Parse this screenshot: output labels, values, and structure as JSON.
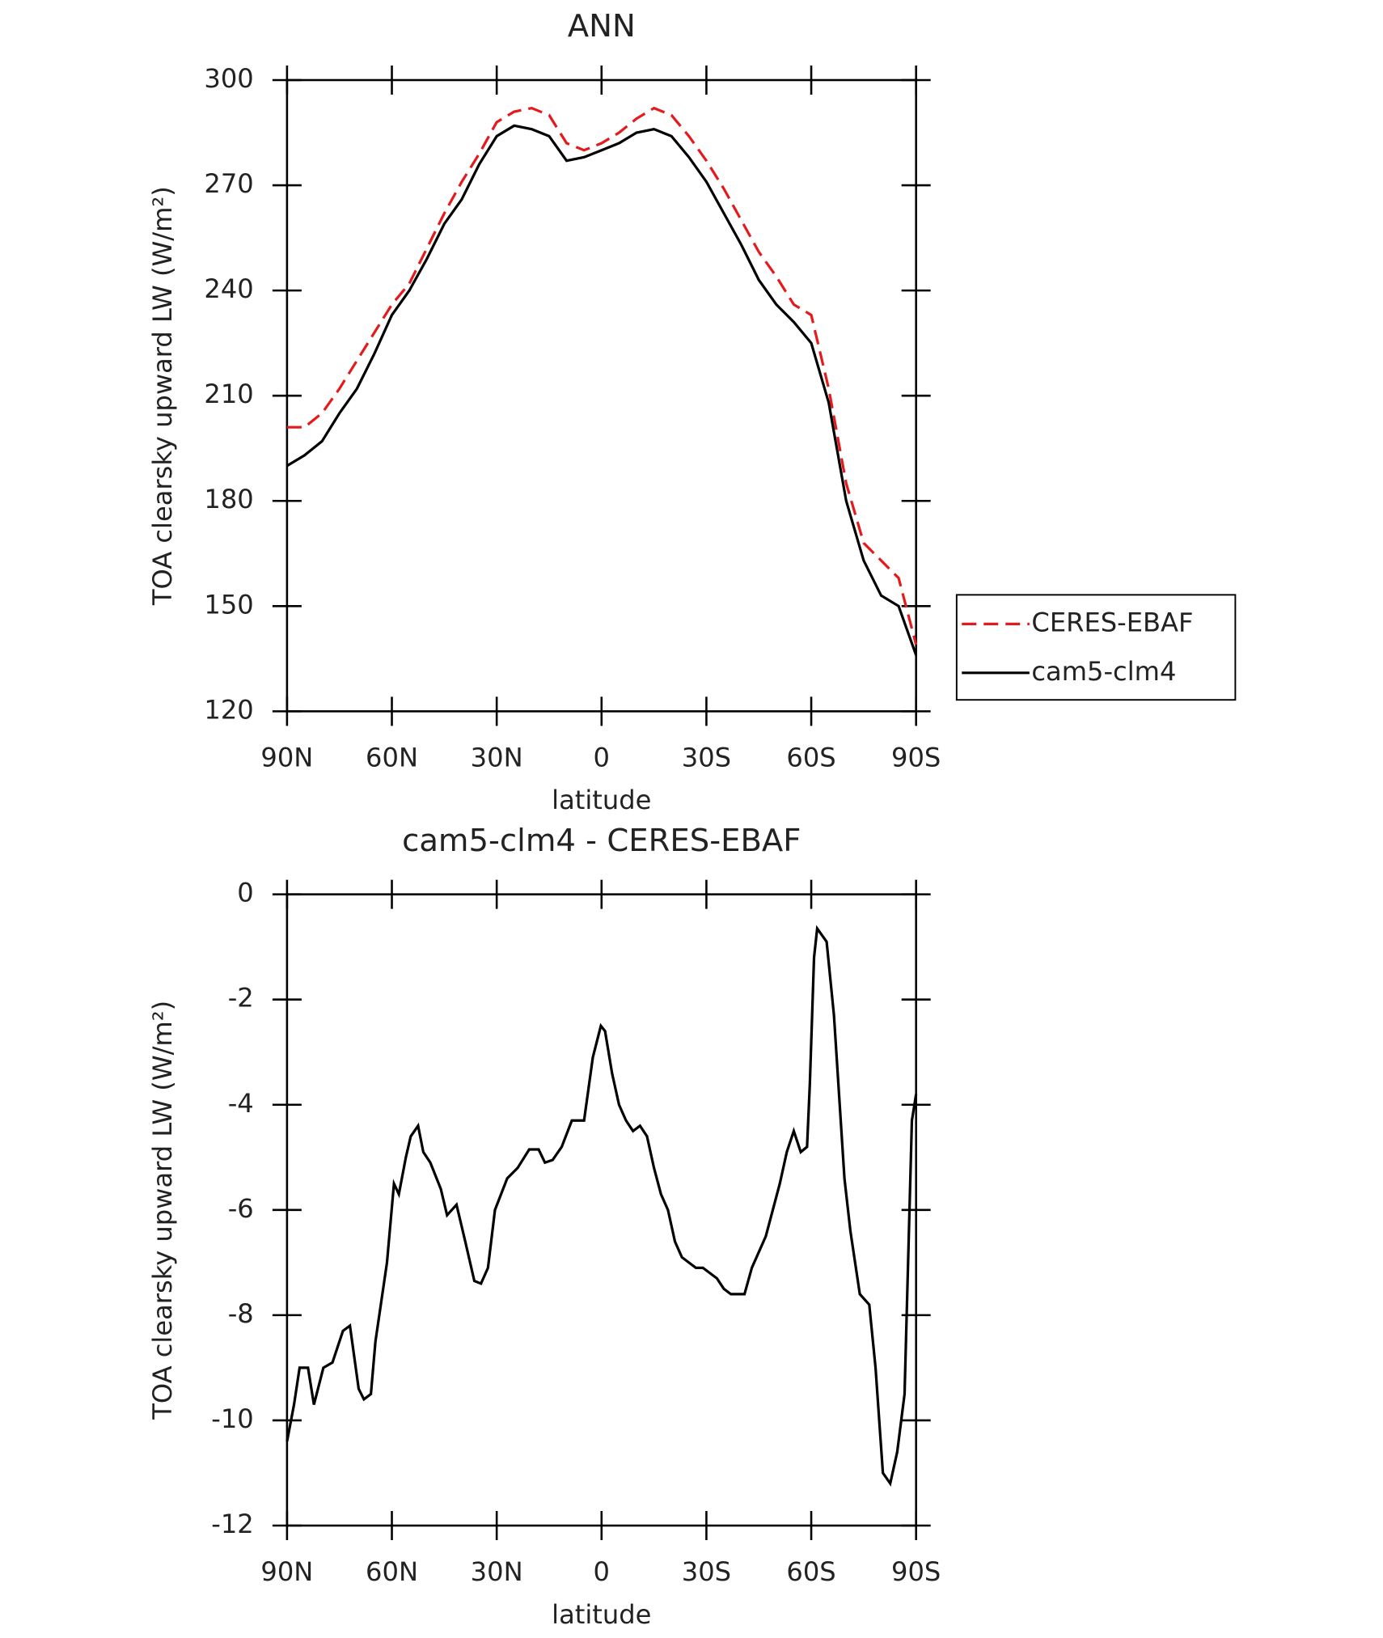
{
  "chart_data": [
    {
      "type": "line",
      "title": "ANN",
      "xlabel": "latitude",
      "ylabel": "TOA clearsky upward LW (W/m²)",
      "x": [
        90,
        85,
        80,
        75,
        70,
        65,
        60,
        55,
        50,
        45,
        40,
        35,
        30,
        25,
        20,
        15,
        10,
        5,
        0,
        -5,
        -10,
        -15,
        -20,
        -25,
        -30,
        -35,
        -40,
        -45,
        -50,
        -55,
        -60,
        -65,
        -70,
        -75,
        -80,
        -85,
        -90
      ],
      "series": [
        {
          "name": "CERES-EBAF",
          "color": "#e41a1c",
          "dash": true,
          "values": [
            201,
            201,
            205,
            212,
            220,
            228,
            236,
            242,
            252,
            262,
            271,
            279,
            288,
            291,
            292,
            290,
            282,
            280,
            282,
            285,
            289,
            292,
            290,
            284,
            277,
            269,
            260,
            251,
            244,
            236,
            233,
            212,
            185,
            168,
            163,
            158,
            139
          ]
        },
        {
          "name": "cam5-clm4",
          "color": "#000000",
          "dash": false,
          "values": [
            190,
            193,
            197,
            205,
            212,
            222,
            233,
            240,
            249,
            259,
            266,
            276,
            284,
            287,
            286,
            284,
            277,
            278,
            280,
            282,
            285,
            286,
            284,
            278,
            271,
            262,
            253,
            243,
            236,
            231,
            225,
            208,
            180,
            163,
            153,
            150,
            136
          ]
        }
      ],
      "xlim": [
        90,
        -90
      ],
      "xticks": [
        {
          "value": 90,
          "label": "90N"
        },
        {
          "value": 60,
          "label": "60N"
        },
        {
          "value": 30,
          "label": "30N"
        },
        0,
        {
          "value": -30,
          "label": "30S"
        },
        {
          "value": -60,
          "label": "60S"
        },
        {
          "value": -90,
          "label": "90S"
        }
      ],
      "ylim": [
        120,
        300
      ],
      "yticks": [
        120,
        150,
        180,
        210,
        240,
        270,
        300
      ],
      "legend": "right"
    },
    {
      "type": "line",
      "title": "cam5-clm4 - CERES-EBAF",
      "xlabel": "latitude",
      "ylabel": "TOA clearsky upward LW (W/m²)",
      "x": [
        90,
        88,
        86.4,
        84,
        82.3,
        79.6,
        77,
        74,
        72,
        69.5,
        68,
        66,
        64.7,
        61.4,
        59.4,
        58,
        56,
        54.6,
        52.5,
        51,
        49,
        46,
        44.2,
        41.5,
        39,
        36.4,
        34.5,
        32.5,
        30.5,
        27,
        24,
        20.7,
        18,
        16.2,
        14,
        11.4,
        8.5,
        5,
        2.5,
        0.2,
        -1,
        -3,
        -5,
        -7,
        -9,
        -11,
        -13,
        -15,
        -17,
        -19,
        -21,
        -23,
        -25,
        -27,
        -29,
        -31,
        -33,
        -35,
        -37,
        -39,
        -40.9,
        -43,
        -45,
        -47,
        -49,
        -51,
        -53,
        -55,
        -57,
        -58.8,
        -59.6,
        -60.8,
        -61.7,
        -64.4,
        -66.5,
        -69.5,
        -71.2,
        -73.9,
        -76.6,
        -78.4,
        -80.5,
        -82.6,
        -84.6,
        -86.7,
        -88.8,
        -90
      ],
      "series": [
        {
          "name": "cam5-clm4 - CERES-EBAF",
          "color": "#000000",
          "dash": false,
          "values": [
            -10.4,
            -9.7,
            -9.0,
            -9.0,
            -9.7,
            -9.0,
            -8.9,
            -8.3,
            -8.2,
            -9.4,
            -9.6,
            -9.5,
            -8.5,
            -7.0,
            -5.5,
            -5.7,
            -5.0,
            -4.6,
            -4.4,
            -4.9,
            -5.1,
            -5.6,
            -6.1,
            -5.9,
            -6.6,
            -7.35,
            -7.4,
            -7.1,
            -6.0,
            -5.4,
            -5.2,
            -4.85,
            -4.85,
            -5.1,
            -5.05,
            -4.8,
            -4.3,
            -4.3,
            -3.1,
            -2.5,
            -2.6,
            -3.4,
            -4.0,
            -4.3,
            -4.5,
            -4.4,
            -4.6,
            -5.2,
            -5.7,
            -6.0,
            -6.6,
            -6.9,
            -7.0,
            -7.1,
            -7.1,
            -7.2,
            -7.3,
            -7.5,
            -7.6,
            -7.6,
            -7.6,
            -7.1,
            -6.8,
            -6.5,
            -6.0,
            -5.5,
            -4.9,
            -4.5,
            -4.9,
            -4.8,
            -3.6,
            -1.2,
            -0.65,
            -0.9,
            -2.3,
            -5.4,
            -6.4,
            -7.6,
            -7.8,
            -9.0,
            -11.0,
            -11.2,
            -10.6,
            -9.5,
            -4.3,
            -3.8
          ]
        }
      ],
      "xlim": [
        90,
        -90
      ],
      "xticks": [
        {
          "value": 90,
          "label": "90N"
        },
        {
          "value": 60,
          "label": "60N"
        },
        {
          "value": 30,
          "label": "30N"
        },
        0,
        {
          "value": -30,
          "label": "30S"
        },
        {
          "value": -60,
          "label": "60S"
        },
        {
          "value": -90,
          "label": "90S"
        }
      ],
      "ylim": [
        -12,
        0
      ],
      "yticks": [
        -12,
        -10,
        -8,
        -6,
        -4,
        -2,
        0
      ]
    }
  ]
}
